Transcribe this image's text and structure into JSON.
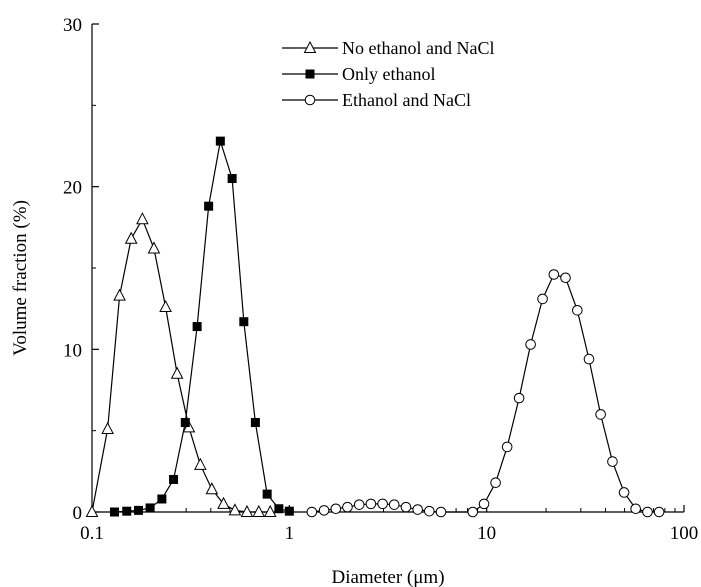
{
  "chart_data": {
    "type": "line",
    "title": "",
    "xlabel": "Diameter (μm)",
    "ylabel": "Volume fraction (%)",
    "x_scale": "log",
    "xlim": [
      0.1,
      100
    ],
    "ylim": [
      0,
      30
    ],
    "x_ticks": [
      {
        "value": 0.1,
        "label": "0.1"
      },
      {
        "value": 1,
        "label": "1"
      },
      {
        "value": 10,
        "label": "10"
      },
      {
        "value": 100,
        "label": "100"
      }
    ],
    "y_ticks": [
      {
        "value": 0,
        "label": "0"
      },
      {
        "value": 10,
        "label": "10"
      },
      {
        "value": 20,
        "label": "20"
      },
      {
        "value": 30,
        "label": "30"
      }
    ],
    "grid": false,
    "legend_position": "top-center",
    "series": [
      {
        "name": "No ethanol and NaCl",
        "marker": "open-triangle",
        "color": "#000000",
        "points": [
          [
            0.1,
            0.0
          ],
          [
            0.12,
            5.1
          ],
          [
            0.138,
            13.3
          ],
          [
            0.158,
            16.8
          ],
          [
            0.18,
            18.0
          ],
          [
            0.206,
            16.2
          ],
          [
            0.236,
            12.6
          ],
          [
            0.27,
            8.5
          ],
          [
            0.31,
            5.2
          ],
          [
            0.354,
            2.9
          ],
          [
            0.405,
            1.4
          ],
          [
            0.464,
            0.5
          ],
          [
            0.53,
            0.1
          ],
          [
            0.61,
            0.0
          ],
          [
            0.7,
            0.0
          ],
          [
            0.8,
            0.0
          ]
        ]
      },
      {
        "name": "Only ethanol",
        "marker": "filled-square",
        "color": "#000000",
        "points": [
          [
            0.13,
            0.0
          ],
          [
            0.15,
            0.05
          ],
          [
            0.172,
            0.1
          ],
          [
            0.197,
            0.25
          ],
          [
            0.226,
            0.8
          ],
          [
            0.259,
            2.0
          ],
          [
            0.297,
            5.5
          ],
          [
            0.341,
            11.4
          ],
          [
            0.39,
            18.8
          ],
          [
            0.447,
            22.8
          ],
          [
            0.513,
            20.5
          ],
          [
            0.588,
            11.7
          ],
          [
            0.673,
            5.5
          ],
          [
            0.772,
            1.1
          ],
          [
            0.885,
            0.2
          ],
          [
            1.0,
            0.05
          ]
        ]
      },
      {
        "name": "Ethanol and NaCl",
        "marker": "open-circle",
        "color": "#000000",
        "points": [
          [
            1.3,
            0.0
          ],
          [
            1.5,
            0.1
          ],
          [
            1.72,
            0.2
          ],
          [
            1.97,
            0.3
          ],
          [
            2.26,
            0.45
          ],
          [
            2.59,
            0.5
          ],
          [
            2.97,
            0.5
          ],
          [
            3.4,
            0.45
          ],
          [
            3.9,
            0.3
          ],
          [
            4.47,
            0.15
          ],
          [
            5.12,
            0.05
          ],
          [
            5.87,
            0.0
          ],
          [
            8.5,
            0.0
          ],
          [
            9.7,
            0.5
          ],
          [
            11.1,
            1.8
          ],
          [
            12.7,
            4.0
          ],
          [
            14.6,
            7.0
          ],
          [
            16.7,
            10.3
          ],
          [
            19.2,
            13.1
          ],
          [
            21.9,
            14.6
          ],
          [
            25.1,
            14.4
          ],
          [
            28.8,
            12.4
          ],
          [
            33.0,
            9.4
          ],
          [
            37.8,
            6.0
          ],
          [
            43.4,
            3.1
          ],
          [
            49.7,
            1.2
          ],
          [
            56.9,
            0.2
          ],
          [
            65.3,
            0.0
          ],
          [
            74.8,
            0.0
          ]
        ]
      }
    ]
  }
}
